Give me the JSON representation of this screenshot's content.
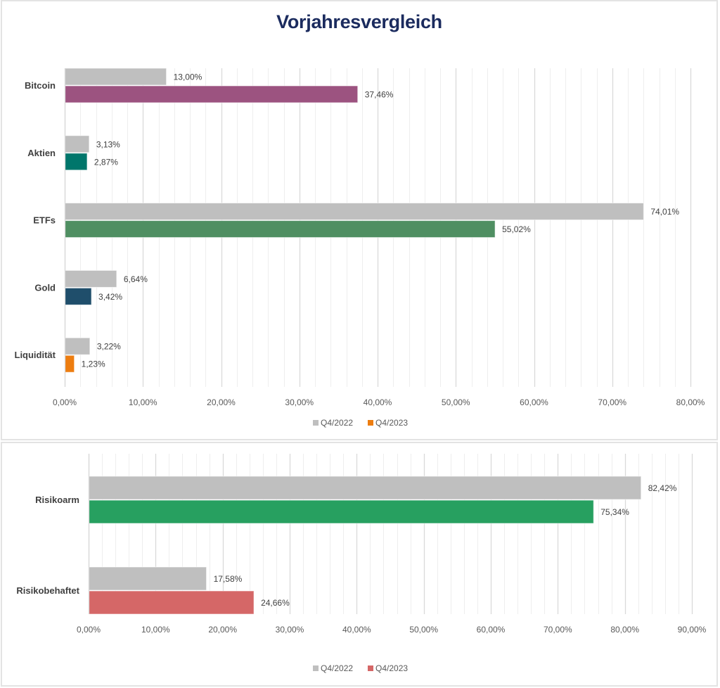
{
  "title": "Vorjahresvergleich",
  "chart_data": [
    {
      "type": "bar",
      "orientation": "horizontal",
      "title": "Vorjahresvergleich",
      "categories": [
        "Bitcoin",
        "Aktien",
        "ETFs",
        "Gold",
        "Liquidität"
      ],
      "series": [
        {
          "name": "Q4/2022",
          "values": [
            13.0,
            3.13,
            74.01,
            6.64,
            3.22
          ],
          "labels": [
            "13,00%",
            "3,13%",
            "74,01%",
            "6,64%",
            "3,22%"
          ],
          "color": "#bfbfbf"
        },
        {
          "name": "Q4/2023",
          "values": [
            37.46,
            2.87,
            55.02,
            3.42,
            1.23
          ],
          "labels": [
            "37,46%",
            "2,87%",
            "55,02%",
            "3,42%",
            "1,23%"
          ],
          "colors": [
            "#9c5380",
            "#00766b",
            "#4f8f62",
            "#1f4e6b",
            "#ed7d10"
          ],
          "legend_color": "#ed7d10"
        }
      ],
      "xlabel": "",
      "ylabel": "",
      "xlim": [
        0,
        80
      ],
      "xticks": [
        0,
        10,
        20,
        30,
        40,
        50,
        60,
        70,
        80
      ],
      "xtick_labels": [
        "0,00%",
        "10,00%",
        "20,00%",
        "30,00%",
        "40,00%",
        "50,00%",
        "60,00%",
        "70,00%",
        "80,00%"
      ],
      "minor_step": 2,
      "grid": true,
      "legend": "bottom-center"
    },
    {
      "type": "bar",
      "orientation": "horizontal",
      "title": "",
      "categories": [
        "Risikoarm",
        "Risikobehaftet"
      ],
      "series": [
        {
          "name": "Q4/2022",
          "values": [
            82.42,
            17.58
          ],
          "labels": [
            "82,42%",
            "17,58%"
          ],
          "color": "#bfbfbf"
        },
        {
          "name": "Q4/2023",
          "values": [
            75.34,
            24.66
          ],
          "labels": [
            "75,34%",
            "24,66%"
          ],
          "colors": [
            "#27a060",
            "#d56767"
          ],
          "legend_color": "#d56767"
        }
      ],
      "xlabel": "",
      "ylabel": "",
      "xlim": [
        0,
        90
      ],
      "xticks": [
        0,
        10,
        20,
        30,
        40,
        50,
        60,
        70,
        80,
        90
      ],
      "xtick_labels": [
        "0,00%",
        "10,00%",
        "20,00%",
        "30,00%",
        "40,00%",
        "50,00%",
        "60,00%",
        "70,00%",
        "80,00%",
        "90,00%"
      ],
      "minor_step": 2,
      "grid": true,
      "legend": "bottom-center"
    }
  ]
}
